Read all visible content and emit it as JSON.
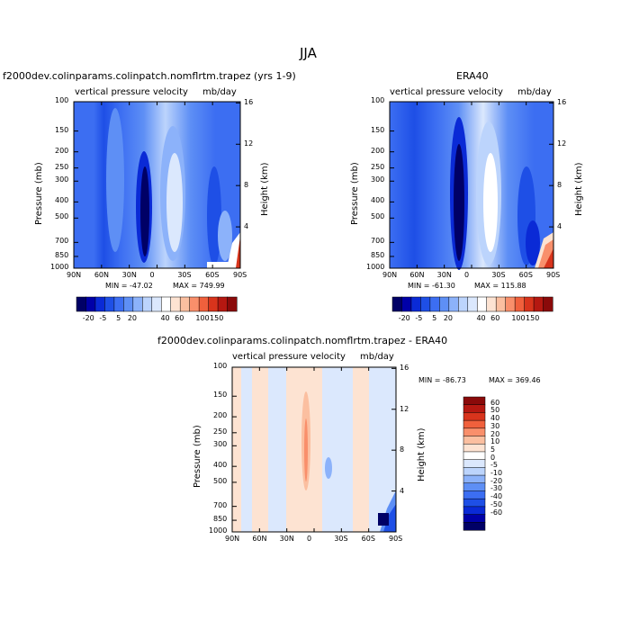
{
  "figure": {
    "title": "JJA"
  },
  "colors": {
    "scale_top": [
      "#000066",
      "#0000a8",
      "#0a2ad6",
      "#1e4fe6",
      "#3c6ef2",
      "#5e8ff5",
      "#8cb2fa",
      "#bcd4fc",
      "#dbe8fd",
      "#ffffff",
      "#fde3d2",
      "#fbbfa0",
      "#f98f6b",
      "#f0603c",
      "#d8341c",
      "#b51811",
      "#8a0a0a"
    ],
    "scale_diff": [
      "#000066",
      "#0000a8",
      "#0a2ad6",
      "#1e4fe6",
      "#3c6ef2",
      "#5e8ff5",
      "#8cb2fa",
      "#bcd4fc",
      "#dbe8fd",
      "#ffffff",
      "#fde3d2",
      "#fbbfa0",
      "#f98f6b",
      "#f0603c",
      "#d8341c",
      "#b51811",
      "#8a0a0a"
    ]
  },
  "chart_data": [
    {
      "type": "heatmap",
      "panel": "model",
      "title": "f2000dev.colinparams.colinpatch.nomflrtm.trapez (yrs 1-9)",
      "subtitle_left": "vertical pressure velocity",
      "subtitle_right": "mb/day",
      "xlabel": "",
      "ylabel": "Pressure (mb)",
      "ylabel_right": "Height (km)",
      "x_ticks": [
        "90N",
        "60N",
        "30N",
        "0",
        "30S",
        "60S",
        "90S"
      ],
      "y_ticks": [
        "100",
        "150",
        "200",
        "250",
        "300",
        "400",
        "500",
        "700",
        "850",
        "1000"
      ],
      "y_right_ticks": [
        "16",
        "12",
        "8",
        "4"
      ],
      "min_label": "MIN = -47.02",
      "max_label": "MAX = 749.99",
      "colorbar_labels": [
        "-20",
        "-5",
        "5",
        "20",
        "40",
        "60",
        "100",
        "150"
      ],
      "colorbar_position": "below"
    },
    {
      "type": "heatmap",
      "panel": "obs",
      "title": "ERA40",
      "subtitle_left": "vertical pressure velocity",
      "subtitle_right": "mb/day",
      "xlabel": "",
      "ylabel": "Pressure (mb)",
      "ylabel_right": "Height (km)",
      "x_ticks": [
        "90N",
        "60N",
        "30N",
        "0",
        "30S",
        "60S",
        "90S"
      ],
      "y_ticks": [
        "100",
        "150",
        "200",
        "250",
        "300",
        "400",
        "500",
        "700",
        "850",
        "1000"
      ],
      "y_right_ticks": [
        "16",
        "12",
        "8",
        "4"
      ],
      "min_label": "MIN = -61.30",
      "max_label": "MAX = 115.88",
      "colorbar_labels": [
        "-20",
        "-5",
        "5",
        "20",
        "40",
        "60",
        "100",
        "150"
      ],
      "colorbar_position": "below"
    },
    {
      "type": "heatmap",
      "panel": "difference",
      "title": "f2000dev.colinparams.colinpatch.nomflrtm.trapez - ERA40",
      "subtitle_left": "vertical pressure velocity",
      "subtitle_right": "mb/day",
      "xlabel": "",
      "ylabel": "Pressure (mb)",
      "ylabel_right": "Height (km)",
      "x_ticks": [
        "90N",
        "60N",
        "30N",
        "0",
        "30S",
        "60S",
        "90S"
      ],
      "y_ticks": [
        "100",
        "150",
        "200",
        "250",
        "300",
        "400",
        "500",
        "700",
        "850",
        "1000"
      ],
      "y_right_ticks": [
        "16",
        "12",
        "8",
        "4"
      ],
      "min_label": "MIN = -86.73",
      "max_label": "MAX = 369.46",
      "colorbar_labels": [
        "60",
        "50",
        "40",
        "30",
        "20",
        "10",
        "5",
        "0",
        "-5",
        "-10",
        "-20",
        "-30",
        "-40",
        "-50",
        "-60"
      ],
      "colorbar_position": "right"
    }
  ]
}
